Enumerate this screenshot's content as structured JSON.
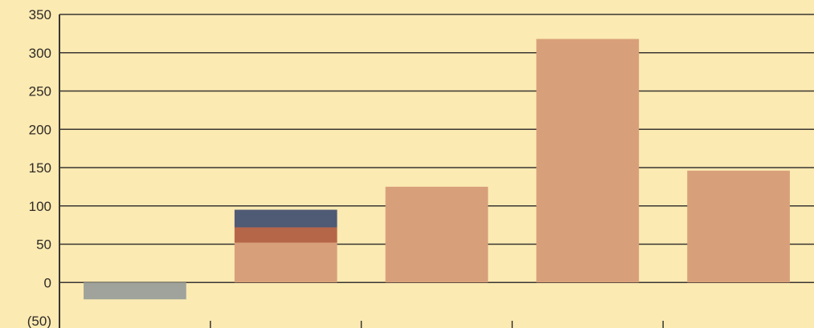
{
  "chart_data": {
    "type": "bar",
    "stacked": true,
    "categories": [
      "",
      "",
      "",
      "",
      ""
    ],
    "y_tick_labels": [
      "350",
      "300",
      "250",
      "200",
      "150",
      "100",
      "50",
      "0",
      "(50)"
    ],
    "ylim": [
      -50,
      350
    ],
    "grid": true,
    "series": [
      {
        "values": [
          -22,
          52,
          125,
          318,
          146
        ],
        "color": "#d8a07a"
      },
      {
        "values": [
          0,
          20,
          0,
          0,
          0
        ],
        "color": "#b66648"
      },
      {
        "values": [
          0,
          23,
          0,
          0,
          0
        ],
        "color": "#4f5a75"
      }
    ],
    "negative_color": "#9fa39b"
  }
}
